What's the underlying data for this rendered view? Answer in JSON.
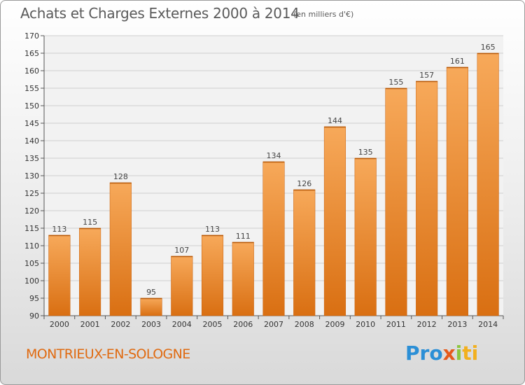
{
  "chart_data": {
    "type": "bar",
    "title": "Achats et Charges Externes 2000 à 2014",
    "subtitle": "(en milliers d'€)",
    "categories": [
      "2000",
      "2001",
      "2002",
      "2003",
      "2004",
      "2005",
      "2006",
      "2007",
      "2008",
      "2009",
      "2010",
      "2011",
      "2012",
      "2013",
      "2014"
    ],
    "values": [
      113,
      115,
      128,
      95,
      107,
      113,
      111,
      134,
      126,
      144,
      135,
      155,
      157,
      161,
      165
    ],
    "ylim": [
      90,
      170
    ],
    "yticks": [
      90,
      95,
      100,
      105,
      110,
      115,
      120,
      125,
      130,
      135,
      140,
      145,
      150,
      155,
      160,
      165,
      170
    ],
    "grid": true,
    "bar_color": "#f0913a"
  },
  "footer": {
    "commune": "MONTRIEUX-EN-SOLOGNE",
    "brand": [
      "Pro",
      "x",
      "i",
      "ti"
    ]
  }
}
